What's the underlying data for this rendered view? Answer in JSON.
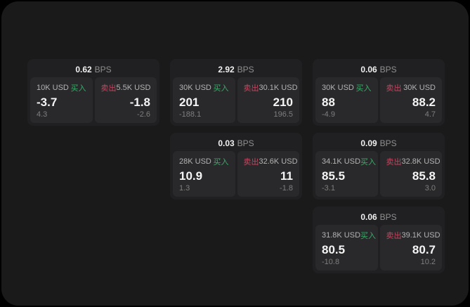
{
  "theme": {
    "frame_bg": "#1a1a1b",
    "card_bg": "#202022",
    "pane_bg": "#29292b",
    "buy_color": "#3fa96c",
    "sell_color": "#c6455f",
    "label_color": "#b3b3b3",
    "muted_color": "#7e7e7e",
    "value_color": "#f5f5f5"
  },
  "labels": {
    "bps_unit": "BPS",
    "buy": "买入",
    "sell": "卖出"
  },
  "cards": [
    {
      "bps": "0.62",
      "row": 1,
      "col": 1,
      "buy": {
        "amount": "10K USD",
        "price": "-3.7",
        "delta": "4.3"
      },
      "sell": {
        "amount": "5.5K USD",
        "price": "-1.8",
        "delta": "-2.6"
      }
    },
    {
      "bps": "2.92",
      "row": 1,
      "col": 2,
      "buy": {
        "amount": "30K USD",
        "price": "201",
        "delta": "-188.1"
      },
      "sell": {
        "amount": "30.1K USD",
        "price": "210",
        "delta": "196.5"
      }
    },
    {
      "bps": "0.06",
      "row": 1,
      "col": 3,
      "buy": {
        "amount": "30K USD",
        "price": "88",
        "delta": "-4.9"
      },
      "sell": {
        "amount": "30K USD",
        "price": "88.2",
        "delta": "4.7"
      }
    },
    {
      "bps": "0.03",
      "row": 2,
      "col": 2,
      "buy": {
        "amount": "28K USD",
        "price": "10.9",
        "delta": "1.3"
      },
      "sell": {
        "amount": "32.6K USD",
        "price": "11",
        "delta": "-1.8"
      }
    },
    {
      "bps": "0.09",
      "row": 2,
      "col": 3,
      "buy": {
        "amount": "34.1K USD",
        "price": "85.5",
        "delta": "-3.1"
      },
      "sell": {
        "amount": "32.8K USD",
        "price": "85.8",
        "delta": "3.0"
      }
    },
    {
      "bps": "0.06",
      "row": 3,
      "col": 3,
      "buy": {
        "amount": "31.8K USD",
        "price": "80.5",
        "delta": "-10.8"
      },
      "sell": {
        "amount": "39.1K USD",
        "price": "80.7",
        "delta": "10.2"
      }
    }
  ]
}
